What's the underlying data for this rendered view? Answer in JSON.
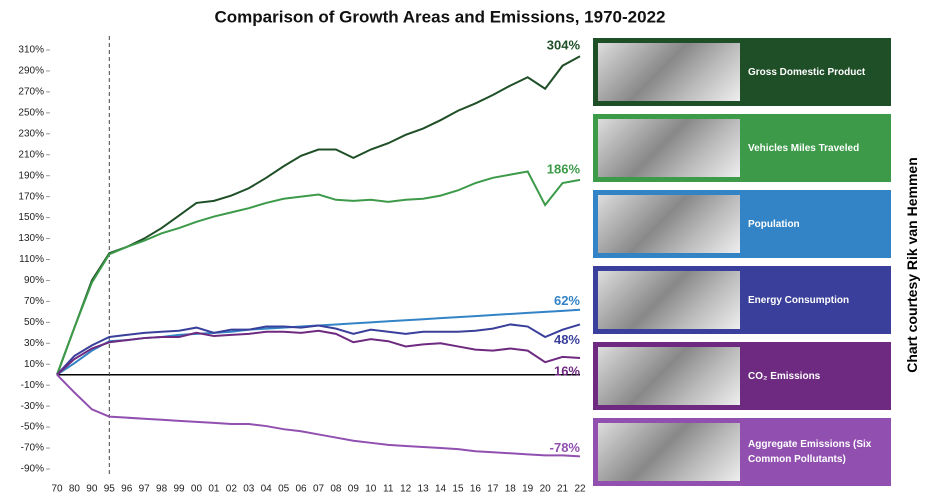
{
  "chart_data": {
    "type": "line",
    "title": "Comparison of Growth Areas and Emissions, 1970-2022",
    "credit": "Chart courtesy Rik van Hemmen",
    "categories": [
      "70",
      "80",
      "90",
      "95",
      "96",
      "97",
      "98",
      "99",
      "00",
      "01",
      "02",
      "03",
      "04",
      "05",
      "06",
      "07",
      "08",
      "09",
      "10",
      "11",
      "12",
      "13",
      "14",
      "15",
      "16",
      "17",
      "18",
      "19",
      "20",
      "21",
      "22"
    ],
    "reference_line": "95",
    "ylim": [
      -90,
      310
    ],
    "yticks": [
      {
        "value": -90,
        "label": "-90%"
      },
      {
        "value": -70,
        "label": "-70%"
      },
      {
        "value": -50,
        "label": "-50%"
      },
      {
        "value": -30,
        "label": "-30%"
      },
      {
        "value": -10,
        "label": "-10%"
      },
      {
        "value": 10,
        "label": "10%"
      },
      {
        "value": 30,
        "label": "30%"
      },
      {
        "value": 50,
        "label": "50%"
      },
      {
        "value": 70,
        "label": "70%"
      },
      {
        "value": 90,
        "label": "90%"
      },
      {
        "value": 110,
        "label": "110%"
      },
      {
        "value": 130,
        "label": "130%"
      },
      {
        "value": 150,
        "label": "150%"
      },
      {
        "value": 170,
        "label": "170%"
      },
      {
        "value": 190,
        "label": "190%"
      },
      {
        "value": 210,
        "label": "210%"
      },
      {
        "value": 230,
        "label": "230%"
      },
      {
        "value": 250,
        "label": "250%"
      },
      {
        "value": 270,
        "label": "270%"
      },
      {
        "value": 290,
        "label": "290%"
      },
      {
        "value": 310,
        "label": "310%"
      }
    ],
    "series": [
      {
        "name": "Gross Domestic Product",
        "color": "#1f4f27",
        "values": [
          0,
          45,
          90,
          116,
          122,
          130,
          140,
          152,
          164,
          166,
          171,
          178,
          188,
          199,
          209,
          215,
          215,
          207,
          215,
          221,
          229,
          235,
          243,
          252,
          259,
          267,
          276,
          284,
          273,
          295,
          304
        ],
        "value_labels": [
          null,
          null,
          null,
          null,
          null,
          null,
          null,
          null,
          null,
          null,
          null,
          null,
          null,
          null,
          null,
          null,
          null,
          null,
          null,
          null,
          null,
          null,
          null,
          null,
          null,
          null,
          null,
          null,
          null,
          null,
          "304%"
        ]
      },
      {
        "name": "Vehicles Miles Traveled",
        "color": "#3c9a49",
        "values": [
          0,
          45,
          88,
          115,
          122,
          128,
          135,
          140,
          146,
          151,
          155,
          159,
          164,
          168,
          170,
          172,
          167,
          166,
          167,
          165,
          167,
          168,
          171,
          176,
          183,
          188,
          191,
          194,
          162,
          183,
          186
        ],
        "value_labels": [
          null,
          null,
          null,
          null,
          null,
          null,
          null,
          null,
          null,
          null,
          null,
          null,
          null,
          null,
          null,
          null,
          null,
          null,
          null,
          null,
          null,
          null,
          null,
          null,
          null,
          null,
          null,
          null,
          null,
          null,
          "186%"
        ]
      },
      {
        "name": "Population",
        "color": "#3384c6",
        "values": [
          0,
          11,
          23,
          32,
          33,
          35,
          36,
          38,
          39,
          40,
          41,
          43,
          44,
          45,
          46,
          47,
          48,
          49,
          50,
          51,
          52,
          53,
          54,
          55,
          56,
          57,
          58,
          59,
          60,
          61,
          62
        ],
        "value_labels": [
          null,
          null,
          null,
          null,
          null,
          null,
          null,
          null,
          null,
          null,
          null,
          null,
          null,
          null,
          null,
          null,
          null,
          null,
          null,
          null,
          null,
          null,
          null,
          null,
          null,
          null,
          null,
          null,
          null,
          null,
          "62%"
        ]
      },
      {
        "name": "Energy Consumption",
        "color": "#393f9a",
        "values": [
          0,
          18,
          28,
          36,
          38,
          40,
          41,
          42,
          45,
          40,
          43,
          43,
          46,
          46,
          45,
          47,
          44,
          39,
          43,
          41,
          39,
          41,
          41,
          41,
          42,
          44,
          48,
          46,
          36,
          43,
          48
        ],
        "value_labels": [
          null,
          null,
          null,
          null,
          null,
          null,
          null,
          null,
          null,
          null,
          null,
          null,
          null,
          null,
          null,
          null,
          null,
          null,
          null,
          null,
          null,
          null,
          null,
          null,
          null,
          null,
          null,
          null,
          null,
          null,
          "48%"
        ]
      },
      {
        "name": "CO₂ Emissions",
        "color": "#6e2a80",
        "values": [
          0,
          15,
          25,
          31,
          33,
          35,
          36,
          36,
          40,
          37,
          38,
          39,
          41,
          41,
          40,
          42,
          39,
          31,
          34,
          32,
          27,
          29,
          30,
          27,
          24,
          23,
          25,
          23,
          12,
          17,
          16
        ],
        "value_labels": [
          null,
          null,
          null,
          null,
          null,
          null,
          null,
          null,
          null,
          null,
          null,
          null,
          null,
          null,
          null,
          null,
          null,
          null,
          null,
          null,
          null,
          null,
          null,
          null,
          null,
          null,
          null,
          null,
          null,
          null,
          "16%"
        ]
      },
      {
        "name": "Aggregate Emissions (Six Common Pollutants)",
        "color": "#9150b0",
        "values": [
          0,
          -17,
          -33,
          -40,
          -41,
          -42,
          -43,
          -44,
          -45,
          -46,
          -47,
          -47,
          -49,
          -52,
          -54,
          -57,
          -60,
          -63,
          -65,
          -67,
          -68,
          -69,
          -70,
          -71,
          -73,
          -74,
          -75,
          -76,
          -77,
          -77,
          -78
        ],
        "value_labels": [
          null,
          null,
          null,
          null,
          null,
          null,
          null,
          null,
          null,
          null,
          null,
          null,
          null,
          null,
          null,
          null,
          null,
          null,
          null,
          null,
          null,
          null,
          null,
          null,
          null,
          null,
          null,
          null,
          null,
          null,
          "-78%"
        ]
      }
    ]
  }
}
